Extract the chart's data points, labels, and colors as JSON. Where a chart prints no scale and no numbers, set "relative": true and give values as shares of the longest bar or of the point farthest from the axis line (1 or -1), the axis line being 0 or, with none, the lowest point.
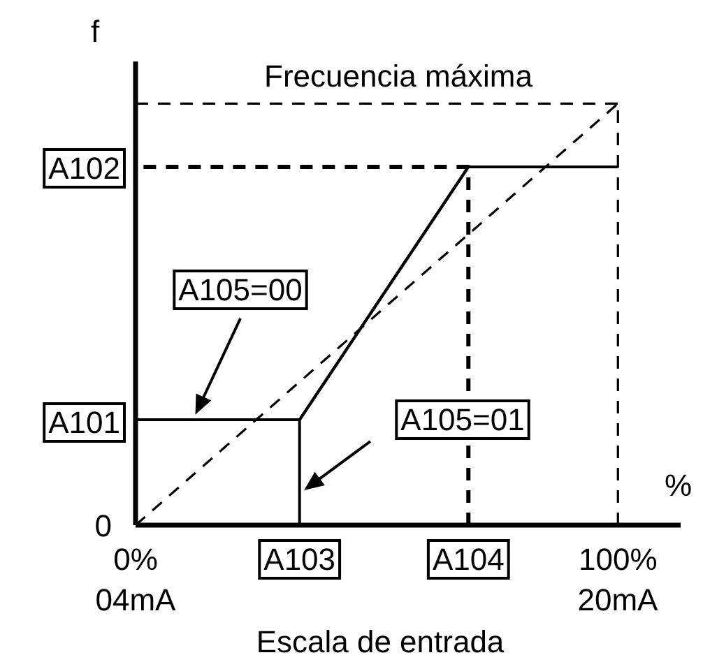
{
  "chart_data": {
    "type": "line",
    "ylabel": "f",
    "xlabel": "Escala de entrada",
    "relative": true,
    "xlim": [
      0,
      113
    ],
    "xticks": [
      {
        "value": 0,
        "label": "0%"
      },
      {
        "value": 34,
        "label": "A103"
      },
      {
        "value": 69,
        "label": "A104"
      },
      {
        "value": 100,
        "label": "100%"
      }
    ],
    "marker": "none",
    "grid": false,
    "series": [
      {
        "color": "#000000",
        "line_style": "dashed",
        "x": [
          0,
          100
        ],
        "values": [
          0,
          1
        ]
      },
      {
        "color": "#000000",
        "line_style": "dashed",
        "x": [
          0,
          100
        ],
        "values": [
          1,
          1
        ]
      },
      {
        "color": "#000000",
        "line_style": "dashed",
        "x": [
          100,
          100
        ],
        "values": [
          0,
          1
        ]
      },
      {
        "color": "#000000",
        "line_style": "dashed",
        "x": [
          69,
          69,
          0
        ],
        "values": [
          0,
          0.85,
          0.85
        ]
      },
      {
        "name": "A105=00",
        "color": "#000000",
        "line_style": "solid",
        "x": [
          0,
          34,
          69,
          100
        ],
        "values": [
          0.25,
          0.25,
          0.85,
          0.85
        ]
      },
      {
        "name": "A105=01",
        "color": "#000000",
        "line_style": "solid",
        "x": [
          34,
          34,
          69,
          100
        ],
        "values": [
          0,
          0.25,
          0.85,
          0.85
        ]
      }
    ],
    "annotations": [
      "Frecuencia máxima",
      "0",
      "A101",
      "A102",
      "04mA",
      "20mA",
      "%"
    ]
  }
}
